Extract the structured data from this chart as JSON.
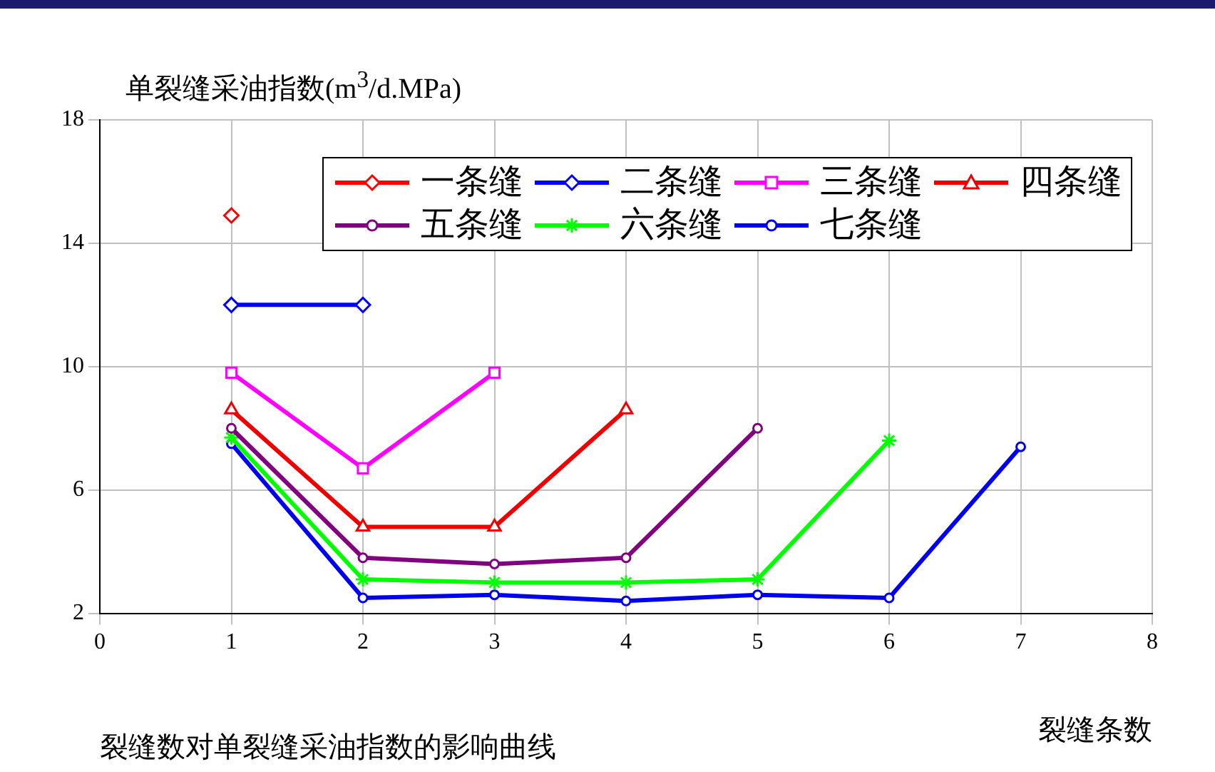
{
  "chart_data": {
    "type": "line",
    "ylabel": "单裂缝采油指数(m$^{3}$/d.MPa)",
    "xlabel": "裂缝条数",
    "annotations": [
      "裂缝数对单裂缝采油指数的影响曲线"
    ],
    "xlim": [
      0,
      8
    ],
    "xticks": [
      0,
      1,
      2,
      3,
      4,
      5,
      6,
      7,
      8
    ],
    "ylim": [
      2,
      18
    ],
    "yticks": [
      2,
      6,
      10,
      14,
      18
    ],
    "grid": true,
    "legend": "top right",
    "line_style": "solid",
    "series": [
      {
        "name": "一条缝",
        "color": "#ff0000",
        "marker": "diamond",
        "x": [
          1
        ],
        "values": [
          14.9
        ]
      },
      {
        "name": "二条缝",
        "color": "#0000ff",
        "marker": "diamond",
        "x": [
          1,
          2
        ],
        "values": [
          12.0,
          12.0
        ]
      },
      {
        "name": "三条缝",
        "color": "#ff00ff",
        "marker": "square",
        "x": [
          1,
          2,
          3
        ],
        "values": [
          9.8,
          6.7,
          9.8
        ]
      },
      {
        "name": "四条缝",
        "color": "#ee0000",
        "marker": "triangle",
        "x": [
          1,
          2,
          3,
          4
        ],
        "values": [
          8.6,
          4.8,
          4.8,
          8.6
        ]
      },
      {
        "name": "五条缝",
        "color": "#800080",
        "marker": "circle",
        "x": [
          1,
          2,
          3,
          4,
          5
        ],
        "values": [
          8.0,
          3.8,
          3.6,
          3.8,
          8.0
        ]
      },
      {
        "name": "六条缝",
        "color": "#00ff00",
        "marker": "cross",
        "x": [
          1,
          2,
          3,
          4,
          5,
          6
        ],
        "values": [
          7.7,
          3.1,
          3.0,
          3.0,
          3.1,
          7.6
        ]
      },
      {
        "name": "七条缝",
        "color": "#0000ee",
        "marker": "circle",
        "x": [
          1,
          2,
          3,
          4,
          5,
          6,
          7
        ],
        "values": [
          7.5,
          2.5,
          2.6,
          2.4,
          2.6,
          2.5,
          7.4
        ]
      }
    ]
  }
}
